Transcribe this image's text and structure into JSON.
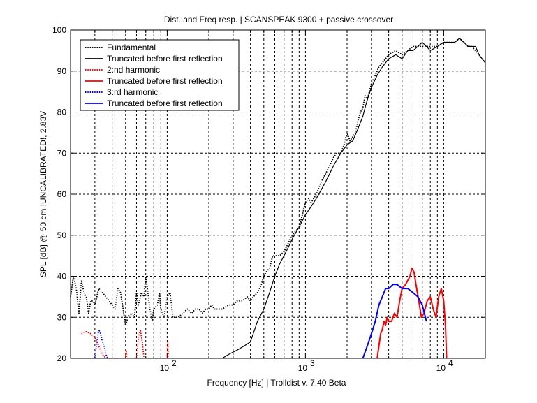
{
  "chart_data": {
    "type": "line",
    "title": "Dist. and Freq resp.  | SCANSPEAK 9300 + passive crossover",
    "xlabel": "Frequency [Hz] | Trolldist v. 7.40 Beta",
    "ylabel": "SPL [dB] @ 50 cm !UNCALIBRATED!, 2.83V",
    "x_scale": "log",
    "xlim": [
      20,
      20000
    ],
    "ylim": [
      20,
      100
    ],
    "grid": true,
    "legend_position": "top-left",
    "yticks": [
      "20",
      "30",
      "40",
      "50",
      "60",
      "70",
      "80",
      "90",
      "100"
    ],
    "xticks": [
      {
        "value": 100,
        "base": "10",
        "exp": "2"
      },
      {
        "value": 1000,
        "base": "10",
        "exp": "3"
      },
      {
        "value": 10000,
        "base": "10",
        "exp": "4"
      }
    ],
    "series": [
      {
        "name": "Fundamental",
        "color": "#000000",
        "style": "dotted",
        "points": [
          [
            20,
            35
          ],
          [
            21,
            40
          ],
          [
            22,
            37
          ],
          [
            23,
            31
          ],
          [
            24,
            39
          ],
          [
            25,
            36
          ],
          [
            26,
            35
          ],
          [
            27,
            31
          ],
          [
            28,
            34
          ],
          [
            29,
            34
          ],
          [
            30,
            33
          ],
          [
            31,
            35
          ],
          [
            32,
            37
          ],
          [
            34,
            36
          ],
          [
            36,
            35
          ],
          [
            38,
            34
          ],
          [
            40,
            33
          ],
          [
            42,
            32
          ],
          [
            44,
            37
          ],
          [
            46,
            36
          ],
          [
            48,
            32
          ],
          [
            50,
            28
          ],
          [
            52,
            30
          ],
          [
            55,
            31
          ],
          [
            58,
            30
          ],
          [
            60,
            36
          ],
          [
            62,
            33
          ],
          [
            65,
            36
          ],
          [
            68,
            35
          ],
          [
            70,
            40
          ],
          [
            72,
            37
          ],
          [
            75,
            32
          ],
          [
            78,
            29
          ],
          [
            80,
            32
          ],
          [
            85,
            33
          ],
          [
            88,
            36
          ],
          [
            90,
            32
          ],
          [
            95,
            30
          ],
          [
            100,
            35
          ],
          [
            105,
            36
          ],
          [
            110,
            30
          ],
          [
            120,
            30
          ],
          [
            130,
            31
          ],
          [
            140,
            32
          ],
          [
            150,
            31
          ],
          [
            160,
            32
          ],
          [
            170,
            32
          ],
          [
            180,
            31
          ],
          [
            190,
            32
          ],
          [
            200,
            32
          ],
          [
            210,
            33
          ],
          [
            220,
            32
          ],
          [
            250,
            32
          ],
          [
            280,
            33
          ],
          [
            300,
            33
          ],
          [
            320,
            34
          ],
          [
            350,
            34
          ],
          [
            380,
            35
          ],
          [
            400,
            34
          ],
          [
            420,
            35
          ],
          [
            450,
            36
          ],
          [
            480,
            38
          ],
          [
            500,
            40
          ],
          [
            520,
            41
          ],
          [
            550,
            42
          ],
          [
            580,
            45
          ],
          [
            600,
            45
          ],
          [
            650,
            45
          ],
          [
            700,
            46
          ],
          [
            750,
            48
          ],
          [
            800,
            50
          ],
          [
            850,
            51
          ],
          [
            900,
            52
          ],
          [
            950,
            55
          ],
          [
            1000,
            58
          ],
          [
            1050,
            59
          ],
          [
            1100,
            58
          ],
          [
            1200,
            60
          ],
          [
            1300,
            63
          ],
          [
            1400,
            65
          ],
          [
            1500,
            67
          ],
          [
            1600,
            69
          ],
          [
            1700,
            70
          ],
          [
            1800,
            70
          ],
          [
            1900,
            72
          ],
          [
            2000,
            75
          ],
          [
            2100,
            73
          ],
          [
            2200,
            74
          ],
          [
            2300,
            75
          ],
          [
            2400,
            78
          ],
          [
            2500,
            80
          ],
          [
            2600,
            81
          ],
          [
            2700,
            84
          ],
          [
            2800,
            83
          ],
          [
            2900,
            85
          ],
          [
            3000,
            87
          ],
          [
            3200,
            89
          ],
          [
            3400,
            91
          ],
          [
            3600,
            92
          ],
          [
            3800,
            93
          ],
          [
            4000,
            94
          ],
          [
            4500,
            95
          ],
          [
            5000,
            94
          ],
          [
            6000,
            96
          ],
          [
            7000,
            96
          ],
          [
            8000,
            96
          ],
          [
            9000,
            96
          ],
          [
            10000,
            97
          ],
          [
            11000,
            97
          ],
          [
            12000,
            97
          ],
          [
            13000,
            98
          ],
          [
            14000,
            97
          ],
          [
            15000,
            96
          ],
          [
            16000,
            96
          ],
          [
            18000,
            94
          ],
          [
            20000,
            92
          ]
        ]
      },
      {
        "name": "Truncated before first reflection",
        "color": "#000000",
        "style": "solid",
        "points": [
          [
            250,
            20
          ],
          [
            280,
            21
          ],
          [
            320,
            22
          ],
          [
            360,
            23
          ],
          [
            400,
            24
          ],
          [
            450,
            29
          ],
          [
            500,
            32
          ],
          [
            550,
            36
          ],
          [
            600,
            40
          ],
          [
            650,
            43
          ],
          [
            700,
            45
          ],
          [
            750,
            47
          ],
          [
            800,
            49
          ],
          [
            900,
            52
          ],
          [
            1000,
            55
          ],
          [
            1100,
            57
          ],
          [
            1200,
            59
          ],
          [
            1400,
            63
          ],
          [
            1600,
            67
          ],
          [
            1800,
            70
          ],
          [
            2000,
            72
          ],
          [
            2200,
            73
          ],
          [
            2400,
            76
          ],
          [
            2600,
            79
          ],
          [
            2800,
            83
          ],
          [
            3000,
            86
          ],
          [
            3300,
            89
          ],
          [
            3600,
            91
          ],
          [
            4000,
            93
          ],
          [
            4500,
            94
          ],
          [
            5000,
            93
          ],
          [
            5500,
            95
          ],
          [
            6000,
            95
          ],
          [
            6500,
            96
          ],
          [
            7000,
            97
          ],
          [
            7500,
            96
          ],
          [
            8000,
            95
          ],
          [
            9000,
            96
          ],
          [
            10000,
            97
          ],
          [
            11000,
            97
          ],
          [
            12000,
            97
          ],
          [
            13000,
            98
          ],
          [
            14000,
            97
          ],
          [
            15000,
            96
          ],
          [
            16000,
            96
          ],
          [
            17000,
            96
          ],
          [
            18000,
            94
          ],
          [
            20000,
            92
          ]
        ]
      },
      {
        "name": "2:nd harmonic",
        "color": "#ff0000",
        "style": "dotted",
        "segments": [
          [
            [
              24,
              26
            ],
            [
              26,
              26.5
            ],
            [
              28,
              26
            ],
            [
              30,
              25
            ],
            [
              32,
              23
            ],
            [
              34,
              21
            ],
            [
              36,
              20
            ]
          ],
          [
            [
              50,
              20
            ],
            [
              50.5,
              22
            ],
            [
              51,
              20
            ]
          ],
          [
            [
              60,
              20
            ],
            [
              62,
              25
            ],
            [
              64,
              27
            ],
            [
              66,
              24
            ],
            [
              68,
              20
            ]
          ],
          [
            [
              100,
              20
            ],
            [
              101,
              24
            ],
            [
              102,
              20
            ]
          ]
        ]
      },
      {
        "name": "Truncated before first reflection",
        "color": "#ff0000",
        "style": "solid",
        "points": [
          [
            3300,
            20
          ],
          [
            3400,
            23
          ],
          [
            3500,
            26
          ],
          [
            3600,
            27
          ],
          [
            3700,
            29
          ],
          [
            3800,
            28
          ],
          [
            3900,
            30
          ],
          [
            4000,
            29
          ],
          [
            4200,
            29
          ],
          [
            4400,
            31
          ],
          [
            4600,
            30
          ],
          [
            4800,
            34
          ],
          [
            5000,
            37
          ],
          [
            5300,
            38
          ],
          [
            5500,
            39
          ],
          [
            5700,
            40
          ],
          [
            5900,
            42
          ],
          [
            6100,
            41
          ],
          [
            6300,
            38
          ],
          [
            6600,
            34
          ],
          [
            6900,
            30
          ],
          [
            7200,
            31
          ],
          [
            7600,
            34
          ],
          [
            8000,
            35
          ],
          [
            8400,
            32
          ],
          [
            8800,
            30
          ],
          [
            9200,
            35
          ],
          [
            9600,
            37
          ],
          [
            10000,
            34
          ],
          [
            10300,
            28
          ],
          [
            10500,
            20
          ]
        ]
      },
      {
        "name": "3:rd harmonic",
        "color": "#0000ff",
        "style": "dotted",
        "points": [
          [
            30,
            20
          ],
          [
            31,
            24
          ],
          [
            32,
            27
          ],
          [
            33,
            26
          ],
          [
            34,
            24
          ],
          [
            35,
            23
          ],
          [
            36,
            21
          ],
          [
            37,
            20
          ]
        ]
      },
      {
        "name": "Truncated before first reflection",
        "color": "#0000ff",
        "style": "solid",
        "points": [
          [
            2600,
            20
          ],
          [
            2800,
            23
          ],
          [
            3000,
            26
          ],
          [
            3200,
            29
          ],
          [
            3400,
            33
          ],
          [
            3600,
            35
          ],
          [
            3800,
            37
          ],
          [
            4000,
            37
          ],
          [
            4300,
            38
          ],
          [
            4600,
            38
          ],
          [
            5000,
            37
          ],
          [
            5500,
            37
          ],
          [
            6000,
            36
          ],
          [
            6500,
            35
          ],
          [
            7000,
            33
          ],
          [
            7500,
            29
          ]
        ]
      }
    ]
  }
}
